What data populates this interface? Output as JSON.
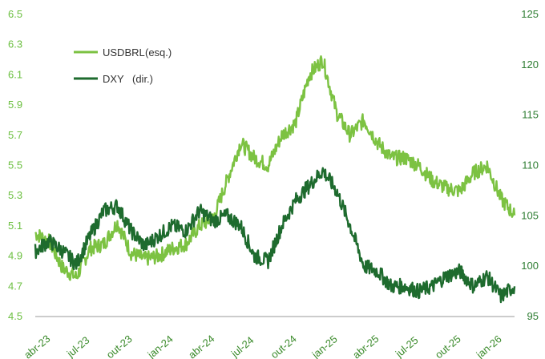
{
  "chart_data": {
    "type": "line",
    "title": "",
    "x_ticks": [
      "abr-23",
      "jul-23",
      "out-23",
      "jan-24",
      "abr-24",
      "jul-24",
      "out-24",
      "jan-25",
      "abr-25",
      "jul-25",
      "out-25",
      "jan-26"
    ],
    "y_left": {
      "ylim": [
        4.5,
        6.5
      ],
      "ticks": [
        "4.5",
        "4.7",
        "4.9",
        "5.1",
        "5.3",
        "5.5",
        "5.7",
        "5.9",
        "6.1",
        "6.3",
        "6.5"
      ]
    },
    "y_right": {
      "ylim": [
        95,
        125
      ],
      "ticks": [
        "95",
        "100",
        "105",
        "110",
        "115",
        "120",
        "125"
      ]
    },
    "grid": false,
    "legend_position": "top-left",
    "colors": {
      "usdbrl": "#7cc242",
      "dxy": "#1e6b2e"
    },
    "series": [
      {
        "name": "USDBRL",
        "label": "(esq.)",
        "axis": "left",
        "x": [
          "2023-04",
          "2023-05",
          "2023-06",
          "2023-07",
          "2023-08",
          "2023-09",
          "2023-10",
          "2023-11",
          "2023-12",
          "2024-01",
          "2024-02",
          "2024-03",
          "2024-04",
          "2024-05",
          "2024-06",
          "2024-07",
          "2024-08",
          "2024-09",
          "2024-10",
          "2024-11",
          "2024-12",
          "2025-01",
          "2025-02",
          "2025-03",
          "2025-04",
          "2025-05",
          "2025-06",
          "2025-07",
          "2025-08",
          "2025-09",
          "2025-10",
          "2025-11",
          "2025-12",
          "2026-01",
          "2026-02",
          "2026-03"
        ],
        "values": [
          5.05,
          5.0,
          4.82,
          4.76,
          4.95,
          4.98,
          5.12,
          4.92,
          4.88,
          4.9,
          4.95,
          4.98,
          5.1,
          5.15,
          5.4,
          5.65,
          5.55,
          5.5,
          5.7,
          5.78,
          6.1,
          6.2,
          5.85,
          5.7,
          5.8,
          5.65,
          5.55,
          5.55,
          5.5,
          5.4,
          5.35,
          5.33,
          5.45,
          5.5,
          5.28,
          5.17
        ]
      },
      {
        "name": "DXY",
        "label": "(dir.)",
        "axis": "right",
        "x": [
          "2023-04",
          "2023-05",
          "2023-06",
          "2023-07",
          "2023-08",
          "2023-09",
          "2023-10",
          "2023-11",
          "2023-12",
          "2024-01",
          "2024-02",
          "2024-03",
          "2024-04",
          "2024-05",
          "2024-06",
          "2024-07",
          "2024-08",
          "2024-09",
          "2024-10",
          "2024-11",
          "2024-12",
          "2025-01",
          "2025-02",
          "2025-03",
          "2025-04",
          "2025-05",
          "2025-06",
          "2025-07",
          "2025-08",
          "2025-09",
          "2025-10",
          "2025-11",
          "2025-12",
          "2026-01",
          "2026-02",
          "2026-03"
        ],
        "values": [
          101.5,
          102.5,
          101.5,
          100.2,
          103.0,
          105.5,
          106.0,
          103.5,
          102.0,
          103.0,
          104.0,
          103.5,
          105.5,
          104.5,
          105.0,
          104.0,
          101.0,
          100.5,
          104.0,
          106.5,
          108.0,
          109.5,
          107.5,
          104.0,
          100.0,
          99.5,
          98.0,
          98.0,
          97.5,
          98.0,
          99.0,
          99.5,
          98.0,
          99.0,
          97.0,
          98.0
        ]
      }
    ]
  }
}
